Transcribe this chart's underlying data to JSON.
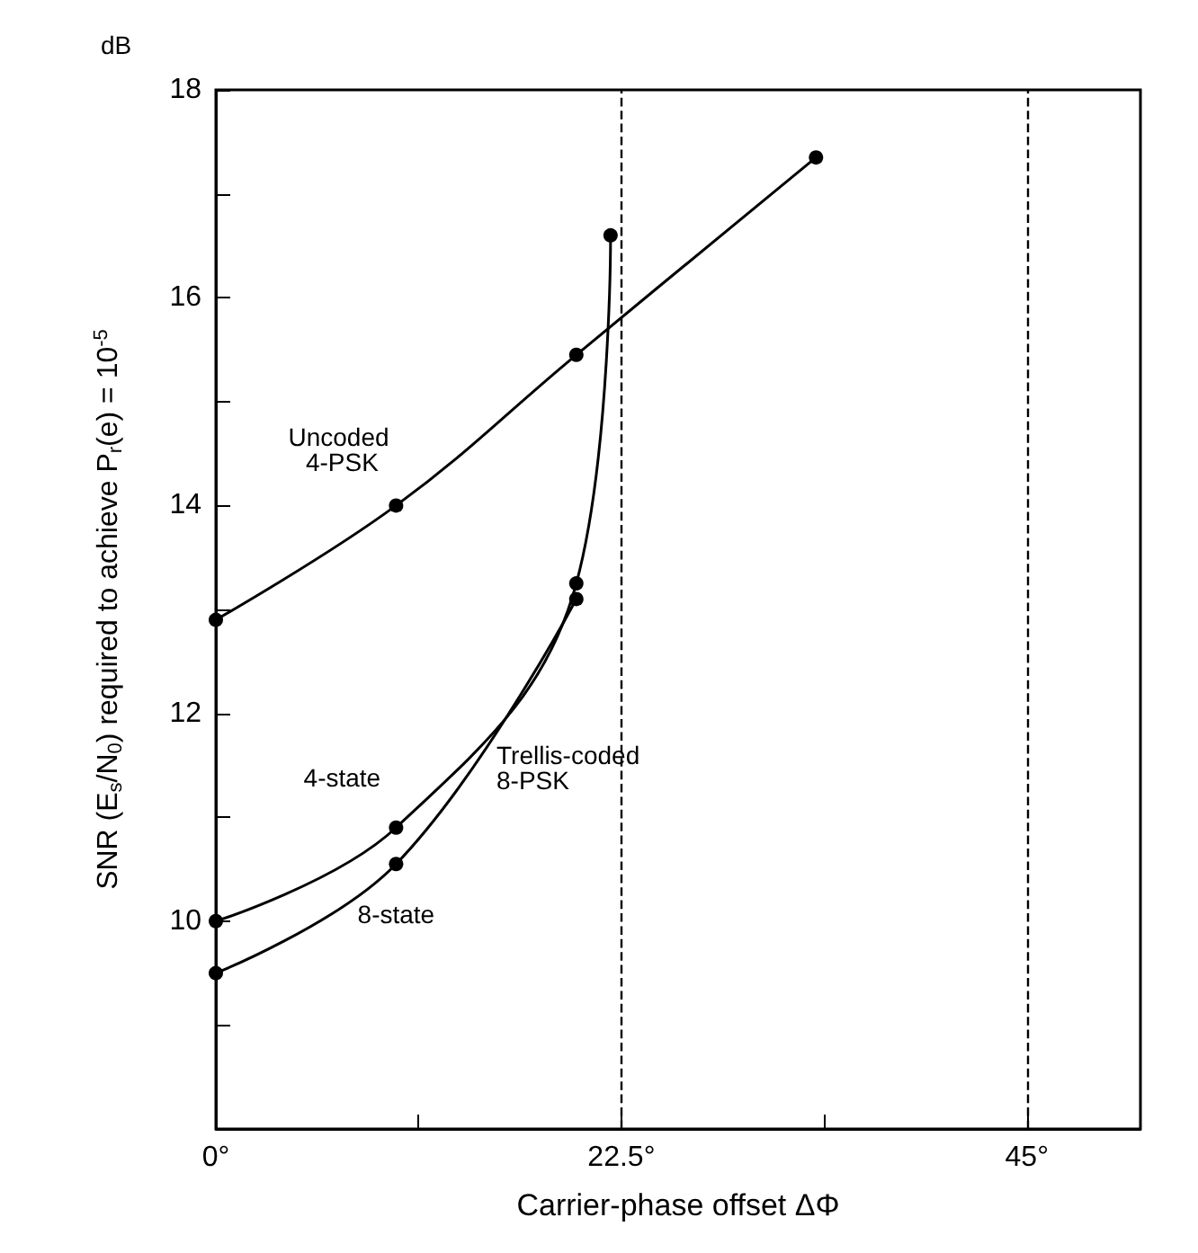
{
  "chart_data": {
    "type": "line",
    "xlabel": "Carrier-phase offset ΔΦ",
    "ylabel": "SNR (E$_{s}$/N$_{0}$) required to achieve P$_{r}$(e) = 10$^{-5}$",
    "annotations": [
      "dB",
      "Trellis-coded 8-PSK"
    ],
    "xlim": [
      0,
      51.3
    ],
    "xticks": [
      {
        "value": 0,
        "label": "0°"
      },
      {
        "value": 11.25,
        "label": null
      },
      {
        "value": 22.5,
        "label": "22.5°"
      },
      {
        "value": 33.75,
        "label": null
      },
      {
        "value": 45,
        "label": "45°"
      }
    ],
    "ylim": [
      8,
      18
    ],
    "yticks": [
      {
        "value": 9,
        "label": null
      },
      10,
      {
        "value": 11,
        "label": null
      },
      12,
      {
        "value": 13,
        "label": null
      },
      14,
      {
        "value": 15,
        "label": null
      },
      16,
      {
        "value": 17,
        "label": null
      },
      18
    ],
    "series": [
      {
        "name": "Uncoded 4-PSK",
        "color": "#000000",
        "x": [
          0,
          10,
          20,
          33.3
        ],
        "values": [
          12.9,
          14.0,
          15.45,
          17.35
        ]
      },
      {
        "name": "4-state",
        "color": "#000000",
        "x": [
          0,
          10,
          20,
          21.9
        ],
        "values": [
          10.0,
          10.9,
          13.25,
          16.6
        ]
      },
      {
        "name": "8-state",
        "color": "#000000",
        "x": [
          0,
          10,
          20
        ],
        "values": [
          9.5,
          10.55,
          13.1
        ]
      }
    ],
    "ref_lines": [
      {
        "axis": "x",
        "value": 22.5,
        "line_style": "dashed"
      },
      {
        "axis": "x",
        "value": 45,
        "line_style": "dashed"
      }
    ],
    "marker": "circle",
    "line_style": "solid",
    "grid": false,
    "legend": false
  }
}
